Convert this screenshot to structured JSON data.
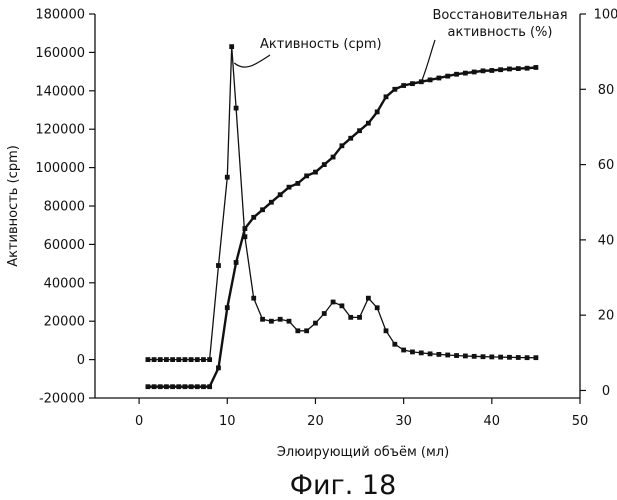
{
  "chart_data": {
    "type": "line",
    "xlabel": "Элюирующий объём (мл)",
    "ylabel": "Активность (cpm)",
    "caption": "Фиг. 18",
    "xlim": [
      -5,
      50
    ],
    "ylim": [
      -20000,
      180000
    ],
    "y2lim": [
      -2,
      100
    ],
    "x_ticks": [
      0,
      10,
      20,
      30,
      40,
      50
    ],
    "y_ticks": [
      -20000,
      0,
      20000,
      40000,
      60000,
      80000,
      100000,
      120000,
      140000,
      160000,
      180000
    ],
    "y2_ticks": [
      0,
      20,
      40,
      60,
      80,
      100
    ],
    "grid": false,
    "series": [
      {
        "name": "Активность (cpm)",
        "axis": "left",
        "x": [
          1,
          1.7,
          2.4,
          3.1,
          3.8,
          4.5,
          5.2,
          5.9,
          6.6,
          7.3,
          8,
          9,
          10,
          10.5,
          11,
          12,
          13,
          14,
          15,
          16,
          17,
          18,
          19,
          20,
          21,
          22,
          23,
          24,
          25,
          26,
          27,
          28,
          29,
          30,
          31,
          32,
          33,
          34,
          35,
          36,
          37,
          38,
          39,
          40,
          41,
          42,
          43,
          44,
          45
        ],
        "values": [
          0,
          0,
          0,
          0,
          0,
          0,
          0,
          0,
          0,
          0,
          0,
          49000,
          95000,
          163000,
          131000,
          64000,
          32000,
          21000,
          20000,
          21000,
          20000,
          15000,
          15000,
          19000,
          24000,
          30000,
          28000,
          22000,
          22000,
          32000,
          27000,
          15000,
          8000,
          5000,
          4000,
          3500,
          3000,
          2700,
          2400,
          2100,
          1900,
          1700,
          1500,
          1400,
          1300,
          1200,
          1100,
          1000,
          1000
        ]
      },
      {
        "name": "Восстановительная активность (%)",
        "axis": "right",
        "x": [
          1,
          1.7,
          2.4,
          3.1,
          3.8,
          4.5,
          5.2,
          5.9,
          6.6,
          7.3,
          8,
          9,
          10,
          11,
          12,
          13,
          14,
          15,
          16,
          17,
          18,
          19,
          20,
          21,
          22,
          23,
          24,
          25,
          26,
          27,
          28,
          29,
          30,
          31,
          32,
          33,
          34,
          35,
          36,
          37,
          38,
          39,
          40,
          41,
          42,
          43,
          44,
          45
        ],
        "values": [
          1,
          1,
          1,
          1,
          1,
          1,
          1,
          1,
          1,
          1,
          1,
          6,
          22,
          34,
          43,
          46,
          48,
          50,
          52,
          54,
          55,
          57,
          58,
          60,
          62,
          65,
          67,
          69,
          71,
          74,
          78,
          80,
          81,
          81.5,
          82,
          82.5,
          83,
          83.5,
          84,
          84.3,
          84.6,
          84.9,
          85,
          85.2,
          85.4,
          85.5,
          85.6,
          85.8
        ]
      }
    ],
    "annotations": [
      {
        "text": "Активность (cpm)",
        "series": 0,
        "target_x": 10.8
      },
      {
        "text": "Восстановительная",
        "series": 1,
        "target_x": 32
      },
      {
        "text": "активность (%)",
        "series": 1
      }
    ]
  }
}
